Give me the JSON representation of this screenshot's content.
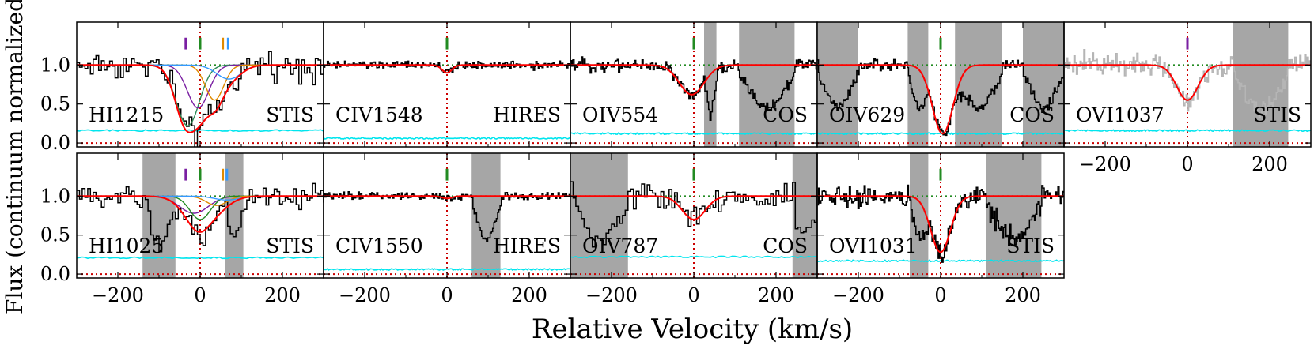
{
  "figure": {
    "xlabel": "Relative Velocity (km/s)",
    "ylabel": "Flux (continuum normalized)",
    "xlim": [
      -300,
      300
    ],
    "ylim": [
      -0.05,
      1.55
    ],
    "xticks": [
      -200,
      0,
      200
    ],
    "xtick_labels": [
      "−200",
      "0",
      "200"
    ],
    "yticks": [
      0.0,
      0.5,
      1.0
    ],
    "ytick_labels": [
      "0.0",
      "0.5",
      "1.0"
    ],
    "colors": {
      "data": "#000000",
      "model": "#ff0000",
      "error": "#00e5ee",
      "zero_line": "#cc0000",
      "masked": "#a6a6a6",
      "marker_green": "#228b22",
      "marker_purple": "#7a1fa2",
      "marker_orange": "#e08a00",
      "marker_blue": "#3399ff"
    }
  },
  "chart_data": [
    {
      "type": "line",
      "ion": "HI1215",
      "instrument": "STIS",
      "row": 0,
      "col": 0,
      "show_yticks": true,
      "absorption_components": [
        {
          "v": -30,
          "depth": 0.78,
          "b": 28,
          "color": "#2e8b57"
        },
        {
          "v": -5,
          "depth": 0.55,
          "b": 26,
          "color": "#7a1fa2"
        },
        {
          "v": 35,
          "depth": 0.45,
          "b": 22,
          "color": "#e08a00"
        },
        {
          "v": 70,
          "depth": 0.18,
          "b": 30,
          "color": "#3399ff"
        }
      ],
      "model_depth_total": true,
      "noise": 0.13,
      "err_level": 0.16,
      "masked_regions": [],
      "component_markers": [
        {
          "v": -35,
          "color": "#7a1fa2"
        },
        {
          "v": 0,
          "color": "#228b22"
        },
        {
          "v": 55,
          "color": "#e08a00"
        },
        {
          "v": 68,
          "color": "#3399ff"
        }
      ],
      "faded": false
    },
    {
      "type": "line",
      "ion": "CIV1548",
      "instrument": "HIRES",
      "row": 0,
      "col": 1,
      "show_yticks": false,
      "absorption_components": [
        {
          "v": 0,
          "depth": 0.1,
          "b": 12,
          "color": null
        }
      ],
      "noise": 0.035,
      "err_level": 0.06,
      "masked_regions": [],
      "component_markers": [
        {
          "v": 0,
          "color": "#228b22"
        }
      ],
      "faded": false
    },
    {
      "type": "line",
      "ion": "OIV554",
      "instrument": "COS",
      "row": 0,
      "col": 2,
      "show_yticks": false,
      "absorption_components": [
        {
          "v": -5,
          "depth": 0.38,
          "b": 30,
          "color": null
        }
      ],
      "noise": 0.06,
      "err_level": 0.12,
      "masked_regions": [
        [
          25,
          55
        ],
        [
          110,
          245
        ]
      ],
      "component_markers": [
        {
          "v": 0,
          "color": "#228b22"
        }
      ],
      "faded": false
    },
    {
      "type": "line",
      "ion": "OIV629",
      "instrument": "COS",
      "row": 0,
      "col": 3,
      "show_yticks": false,
      "absorption_components": [
        {
          "v": 5,
          "depth": 0.88,
          "b": 25,
          "color": null
        }
      ],
      "noise": 0.05,
      "err_level": 0.12,
      "masked_regions": [
        [
          -300,
          -200
        ],
        [
          -80,
          -30
        ],
        [
          35,
          150
        ],
        [
          200,
          300
        ]
      ],
      "component_markers": [
        {
          "v": 0,
          "color": "#228b22"
        }
      ],
      "faded": false
    },
    {
      "type": "line",
      "ion": "OVI1037",
      "instrument": "STIS",
      "row": 0,
      "col": 4,
      "show_yticks": false,
      "absorption_components": [
        {
          "v": 0,
          "depth": 0.45,
          "b": 26,
          "color": null
        }
      ],
      "noise": 0.1,
      "err_level": 0.16,
      "masked_regions": [
        [
          110,
          245
        ]
      ],
      "component_markers": [
        {
          "v": 0,
          "color": "#7a1fa2"
        }
      ],
      "faded": true
    },
    {
      "type": "line",
      "ion": "HI1025",
      "instrument": "STIS",
      "row": 1,
      "col": 0,
      "show_yticks": true,
      "absorption_components": [
        {
          "v": -15,
          "depth": 0.22,
          "b": 35,
          "color": "#7a1fa2"
        },
        {
          "v": 0,
          "depth": 0.3,
          "b": 25,
          "color": "#228b22"
        },
        {
          "v": 40,
          "depth": 0.12,
          "b": 25,
          "color": "#e08a00"
        },
        {
          "v": 65,
          "depth": 0.05,
          "b": 30,
          "color": "#3399ff"
        }
      ],
      "noise": 0.12,
      "err_level": 0.21,
      "masked_regions": [
        [
          -140,
          -60
        ],
        [
          60,
          105
        ]
      ],
      "component_markers": [
        {
          "v": -35,
          "color": "#7a1fa2"
        },
        {
          "v": 0,
          "color": "#228b22"
        },
        {
          "v": 55,
          "color": "#e08a00"
        },
        {
          "v": 65,
          "color": "#3399ff"
        }
      ],
      "faded": false
    },
    {
      "type": "line",
      "ion": "CIV1550",
      "instrument": "HIRES",
      "row": 1,
      "col": 1,
      "show_yticks": false,
      "absorption_components": [
        {
          "v": 0,
          "depth": 0.03,
          "b": 12,
          "color": null
        }
      ],
      "noise": 0.035,
      "err_level": 0.06,
      "masked_regions": [
        [
          60,
          130
        ]
      ],
      "component_markers": [
        {
          "v": 0,
          "color": "#228b22"
        }
      ],
      "faded": false
    },
    {
      "type": "line",
      "ion": "OIV787",
      "instrument": "COS",
      "row": 1,
      "col": 2,
      "show_yticks": false,
      "absorption_components": [
        {
          "v": 0,
          "depth": 0.3,
          "b": 28,
          "color": null
        }
      ],
      "noise": 0.14,
      "err_level": 0.22,
      "masked_regions": [
        [
          -300,
          -160
        ],
        [
          240,
          300
        ]
      ],
      "component_markers": [
        {
          "v": 0,
          "color": "#228b22"
        }
      ],
      "faded": false
    },
    {
      "type": "line",
      "ion": "OVI1031",
      "instrument": "STIS",
      "row": 1,
      "col": 3,
      "show_yticks": false,
      "absorption_components": [
        {
          "v": 0,
          "depth": 0.72,
          "b": 24,
          "color": null
        }
      ],
      "noise": 0.1,
      "err_level": 0.17,
      "masked_regions": [
        [
          -75,
          -30
        ],
        [
          110,
          245
        ]
      ],
      "component_markers": [
        {
          "v": 0,
          "color": "#228b22"
        }
      ],
      "faded": false
    }
  ]
}
